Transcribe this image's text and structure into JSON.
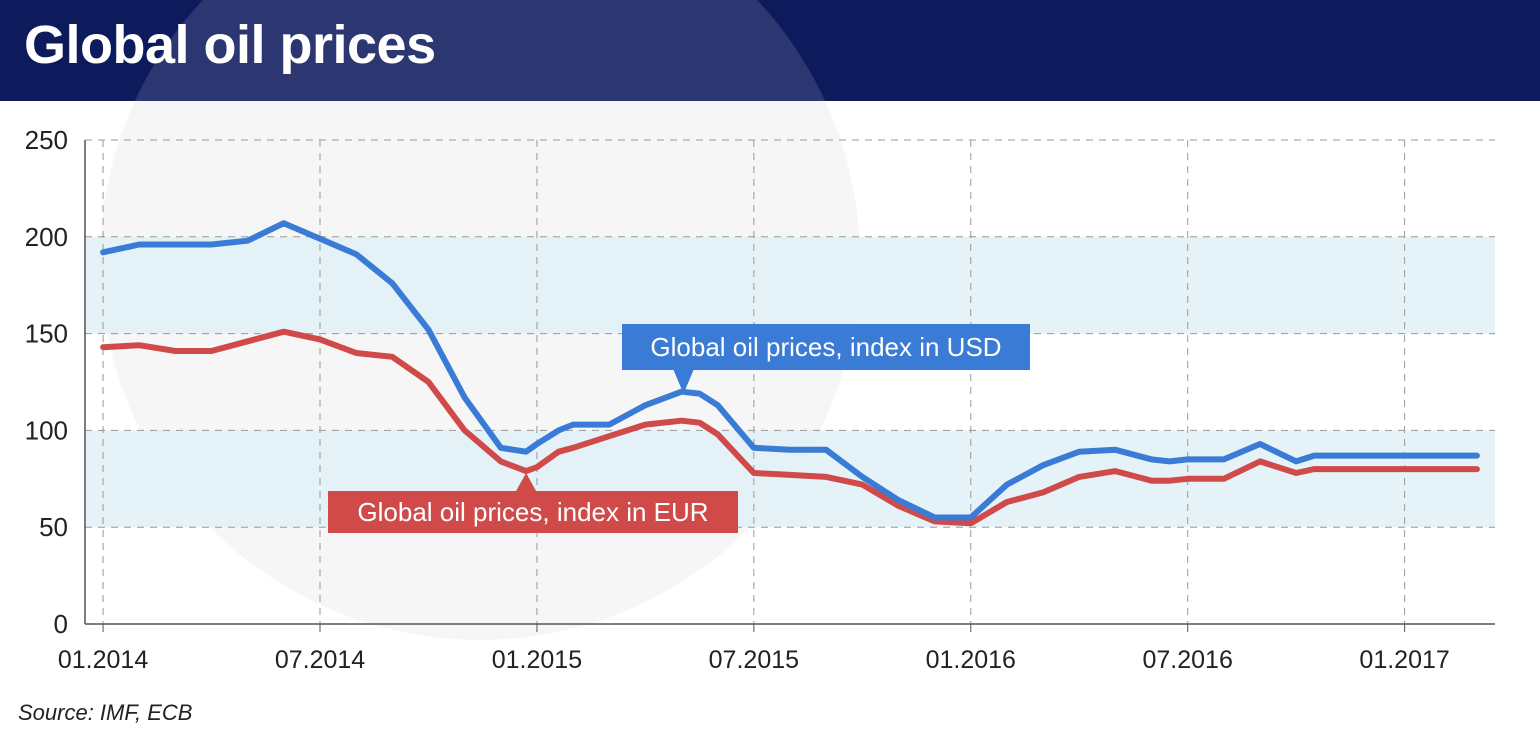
{
  "header": {
    "title": "Global oil prices"
  },
  "source": "Source: IMF, ECB",
  "colors": {
    "header_bg": "#0d1a5c",
    "usd": "#3a7bd5",
    "eur": "#d04a4a",
    "band": "#e1f0f7",
    "grid": "#999999"
  },
  "chart_data": {
    "type": "line",
    "title": "Global oil prices",
    "ylim": [
      0,
      250
    ],
    "yticks": [
      "0",
      "50",
      "100",
      "150",
      "200",
      "250"
    ],
    "xticks": [
      "01.2014",
      "07.2014",
      "01.2015",
      "07.2015",
      "01.2016",
      "07.2016",
      "01.2017"
    ],
    "xlim": [
      -0.5,
      38.5
    ],
    "grid": true,
    "shaded_bands": [
      [
        50,
        100
      ],
      [
        150,
        200
      ]
    ],
    "series": [
      {
        "name": "Global oil prices, index in USD",
        "color": "#3a7bd5",
        "x": [
          0,
          1,
          2,
          3,
          4,
          5,
          6,
          7,
          8,
          9,
          10,
          11,
          11.7,
          12,
          12.6,
          13,
          14,
          15,
          16,
          16.5,
          17,
          18,
          19,
          20,
          21,
          22,
          23,
          24,
          25,
          26,
          27,
          28,
          29,
          29.5,
          30,
          31,
          32,
          33,
          33.5,
          34,
          35,
          36,
          37,
          38
        ],
        "y": [
          192,
          196,
          196,
          196,
          198,
          207,
          199,
          191,
          176,
          152,
          117,
          91,
          89,
          93,
          100,
          103,
          103,
          113,
          120,
          119,
          113,
          91,
          90,
          90,
          76,
          64,
          55,
          55,
          72,
          82,
          89,
          90,
          85,
          84,
          85,
          85,
          93,
          84,
          87,
          87,
          87,
          87,
          87,
          87
        ]
      },
      {
        "name": "Global oil prices, index in EUR",
        "color": "#d04a4a",
        "x": [
          0,
          1,
          2,
          3,
          4,
          5,
          6,
          7,
          8,
          9,
          10,
          11,
          11.7,
          12,
          12.6,
          13,
          14,
          15,
          16,
          16.5,
          17,
          18,
          19,
          20,
          21,
          22,
          23,
          24,
          25,
          26,
          27,
          28,
          29,
          29.5,
          30,
          31,
          32,
          33,
          33.5,
          34,
          35,
          36,
          37,
          38
        ],
        "y": [
          143,
          144,
          141,
          141,
          146,
          151,
          147,
          140,
          138,
          125,
          100,
          84,
          79,
          81,
          89,
          91,
          97,
          103,
          105,
          104,
          98,
          78,
          77,
          76,
          72,
          61,
          53,
          52,
          63,
          68,
          76,
          79,
          74,
          74,
          75,
          75,
          84,
          78,
          80,
          80,
          80,
          80,
          80,
          80
        ]
      }
    ],
    "annotations": [
      {
        "text": "Global oil prices, index in USD",
        "series": 0
      },
      {
        "text": "Global oil prices, index in EUR",
        "series": 1
      }
    ]
  }
}
